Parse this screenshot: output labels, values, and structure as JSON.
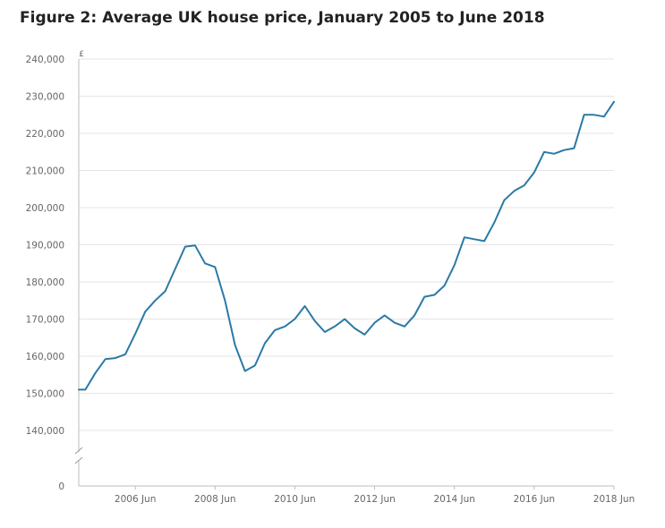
{
  "title": "Figure 2: Average UK house price, January 2005 to June 2018",
  "colors": {
    "line": "#2a7aa6",
    "grid": "#e5e5e5",
    "axis": "#bdbdbd",
    "text": "#666666",
    "title": "#222222"
  },
  "chart_data": {
    "type": "line",
    "title": "Figure 2: Average UK house price, January 2005 to June 2018",
    "xlabel": "",
    "ylabel": "£",
    "y_ticks": [
      "240,000",
      "230,000",
      "220,000",
      "210,000",
      "200,000",
      "190,000",
      "180,000",
      "170,000",
      "160,000",
      "150,000",
      "140,000",
      "0"
    ],
    "x_ticks": [
      "2006 Jun",
      "2008 Jun",
      "2010 Jun",
      "2012 Jun",
      "2014 Jun",
      "2016 Jun",
      "2018 Jun"
    ],
    "ylim": [
      140000,
      240000
    ],
    "axis_break": true,
    "grid": true,
    "x_range": [
      "2005-01",
      "2018-06"
    ],
    "series": [
      {
        "x": [
          "2005-01",
          "2005-03",
          "2005-06",
          "2005-09",
          "2005-12",
          "2006-03",
          "2006-06",
          "2006-09",
          "2006-12",
          "2007-03",
          "2007-06",
          "2007-09",
          "2007-12",
          "2008-03",
          "2008-06",
          "2008-09",
          "2008-12",
          "2009-03",
          "2009-06",
          "2009-09",
          "2009-12",
          "2010-03",
          "2010-06",
          "2010-09",
          "2010-12",
          "2011-03",
          "2011-06",
          "2011-09",
          "2011-12",
          "2012-03",
          "2012-06",
          "2012-09",
          "2012-12",
          "2013-03",
          "2013-06",
          "2013-09",
          "2013-12",
          "2014-03",
          "2014-06",
          "2014-09",
          "2014-12",
          "2015-03",
          "2015-06",
          "2015-09",
          "2015-12",
          "2016-03",
          "2016-06",
          "2016-09",
          "2016-12",
          "2017-03",
          "2017-06",
          "2017-09",
          "2017-12",
          "2018-03",
          "2018-06"
        ],
        "values": [
          151000,
          151000,
          155500,
          159200,
          159500,
          160500,
          166000,
          172000,
          175000,
          177500,
          183500,
          189500,
          189800,
          185000,
          184000,
          175000,
          163000,
          156000,
          157500,
          163500,
          167000,
          168000,
          170000,
          173500,
          169500,
          166500,
          168000,
          170000,
          167500,
          165800,
          169000,
          171000,
          169000,
          168000,
          171000,
          176000,
          176500,
          179000,
          184500,
          192000,
          191500,
          191000,
          196000,
          202000,
          204500,
          206000,
          209500,
          215000,
          214500,
          215500,
          216000,
          225000,
          225000,
          224500,
          228500
        ]
      }
    ]
  }
}
